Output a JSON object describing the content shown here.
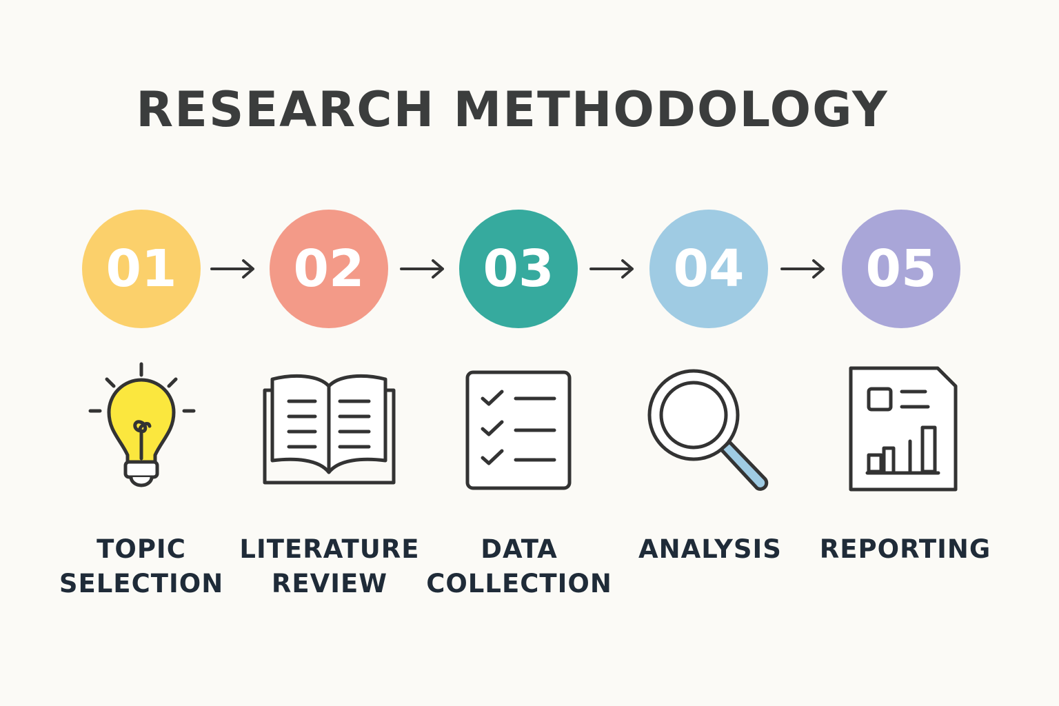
{
  "title": "RESEARCH METHODOLOGY",
  "steps": [
    {
      "number": "01",
      "label_line1": "TOPIC",
      "label_line2": "SELECTION",
      "color": "#fbd06b",
      "icon": "lightbulb-icon"
    },
    {
      "number": "02",
      "label_line1": "LITERATURE",
      "label_line2": "REVIEW",
      "color": "#f39a88",
      "icon": "open-book-icon"
    },
    {
      "number": "03",
      "label_line1": "DATA",
      "label_line2": "COLLECTION",
      "color": "#36aa9e",
      "icon": "checklist-icon"
    },
    {
      "number": "04",
      "label_line1": "ANALYSIS",
      "label_line2": "",
      "color": "#9fcbe3",
      "icon": "magnifying-glass-icon"
    },
    {
      "number": "05",
      "label_line1": "REPORTING",
      "label_line2": "",
      "color": "#a9a6d8",
      "icon": "report-chart-icon"
    }
  ]
}
